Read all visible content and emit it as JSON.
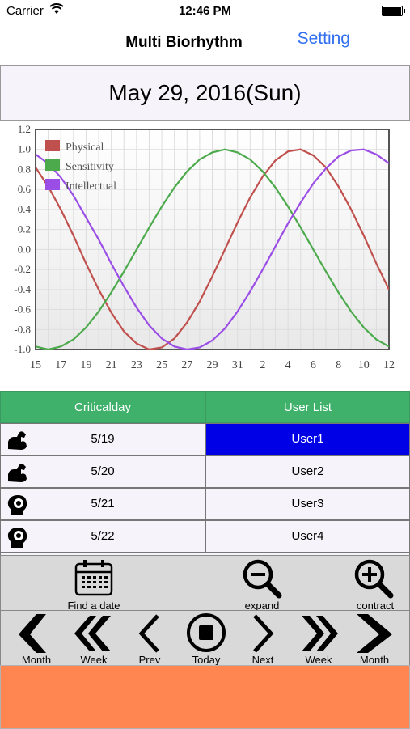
{
  "status": {
    "carrier": "Carrier",
    "time": "12:46 PM"
  },
  "nav": {
    "title": "Multi Biorhythm",
    "setting": "Setting"
  },
  "date": "May 29, 2016(Sun)",
  "chart_data": {
    "type": "line",
    "x_ticks": [
      "15",
      "17",
      "19",
      "21",
      "23",
      "25",
      "27",
      "29",
      "31",
      "2",
      "4",
      "6",
      "8",
      "10",
      "12"
    ],
    "y_ticks": [
      "1.2",
      "1.0",
      "0.8",
      "0.6",
      "0.4",
      "0.2",
      "0.0",
      "-0.2",
      "-0.4",
      "-0.6",
      "-0.8",
      "-1.0"
    ],
    "ylim": [
      -1.0,
      1.2
    ],
    "x": [
      15,
      16,
      17,
      18,
      19,
      20,
      21,
      22,
      23,
      24,
      25,
      26,
      27,
      28,
      29,
      30,
      31,
      32,
      33,
      34,
      35,
      36,
      37,
      38,
      39,
      40,
      41,
      42,
      43
    ],
    "series": [
      {
        "name": "Physical",
        "color": "#c0504d",
        "values": [
          0.82,
          0.63,
          0.4,
          0.14,
          -0.14,
          -0.4,
          -0.63,
          -0.82,
          -0.94,
          -1.0,
          -0.98,
          -0.89,
          -0.73,
          -0.52,
          -0.27,
          0.0,
          0.27,
          0.52,
          0.73,
          0.89,
          0.98,
          1.0,
          0.94,
          0.82,
          0.63,
          0.4,
          0.14,
          -0.14,
          -0.4
        ]
      },
      {
        "name": "Sensitivity",
        "color": "#4caa4c",
        "values": [
          -0.97,
          -1.0,
          -0.97,
          -0.9,
          -0.78,
          -0.62,
          -0.43,
          -0.22,
          0.0,
          0.22,
          0.43,
          0.62,
          0.78,
          0.9,
          0.97,
          1.0,
          0.97,
          0.9,
          0.78,
          0.62,
          0.43,
          0.22,
          0.0,
          -0.22,
          -0.43,
          -0.62,
          -0.78,
          -0.9,
          -0.97
        ]
      },
      {
        "name": "Intellectual",
        "color": "#9b4ee6",
        "values": [
          0.95,
          0.86,
          0.72,
          0.54,
          0.32,
          0.1,
          -0.14,
          -0.37,
          -0.58,
          -0.76,
          -0.89,
          -0.97,
          -1.0,
          -0.98,
          -0.91,
          -0.79,
          -0.62,
          -0.42,
          -0.2,
          0.03,
          0.26,
          0.47,
          0.66,
          0.81,
          0.93,
          0.99,
          1.0,
          0.95,
          0.86
        ]
      }
    ],
    "grid": true,
    "legend_position": "top-left"
  },
  "table": {
    "headers": [
      "Criticalday",
      "User List"
    ],
    "rows": [
      {
        "date": "5/19",
        "icon": "arm-icon",
        "user": "User1",
        "selected": true
      },
      {
        "date": "5/20",
        "icon": "arm-icon",
        "user": "User2",
        "selected": false
      },
      {
        "date": "5/21",
        "icon": "head-icon",
        "user": "User3",
        "selected": false
      },
      {
        "date": "5/22",
        "icon": "head-icon",
        "user": "User4",
        "selected": false
      }
    ]
  },
  "toolbar1": {
    "find": "Find a date",
    "expand": "expand",
    "contract": "contract"
  },
  "toolbar2": {
    "month_prev": "Month",
    "week_prev": "Week",
    "prev": "Prev",
    "today": "Today",
    "next": "Next",
    "week_next": "Week",
    "month_next": "Month"
  },
  "colors": {
    "header_green": "#3fb16b",
    "selected_blue": "#0000e6",
    "bottom_orange": "#ff8650",
    "setting_blue": "#2f6ff0"
  }
}
